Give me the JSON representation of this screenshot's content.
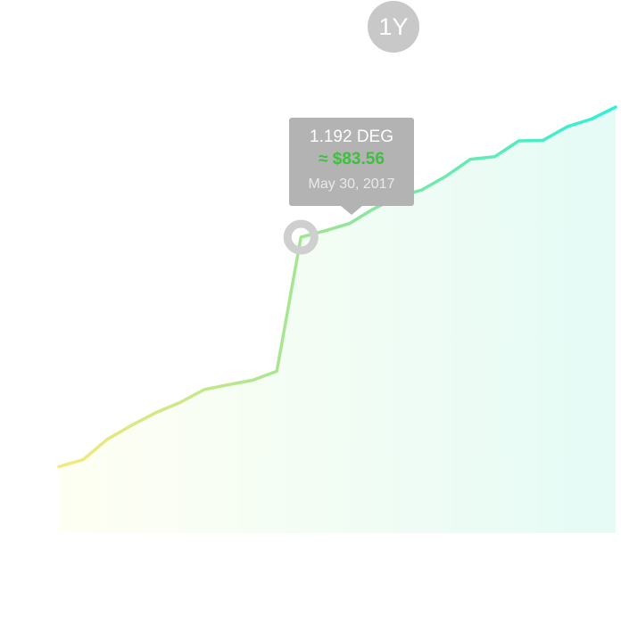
{
  "range_selector": {
    "label": "1Y"
  },
  "tooltip": {
    "amount": "1.192 DEG",
    "value": "≈ $83.56",
    "date": "May 30, 2017"
  },
  "chart_data": {
    "type": "area",
    "series": [
      {
        "values": [
          0.268,
          0.296,
          0.378,
          0.434,
          0.485,
          0.526,
          0.578,
          0.598,
          0.616,
          0.652,
          1.192,
          1.218,
          1.247,
          1.306,
          1.354,
          1.383,
          1.438,
          1.506,
          1.516,
          1.58,
          1.582,
          1.637,
          1.668,
          1.716
        ]
      }
    ],
    "highlight_index": 10,
    "ylim": [
      0,
      1.72
    ],
    "line_gradient": [
      "#f5ea7b",
      "#96e596",
      "#2ef0d6"
    ],
    "fill_gradient": [
      "#fffff3",
      "#e5fbf6"
    ],
    "marker_color": "#cfcfcf"
  }
}
